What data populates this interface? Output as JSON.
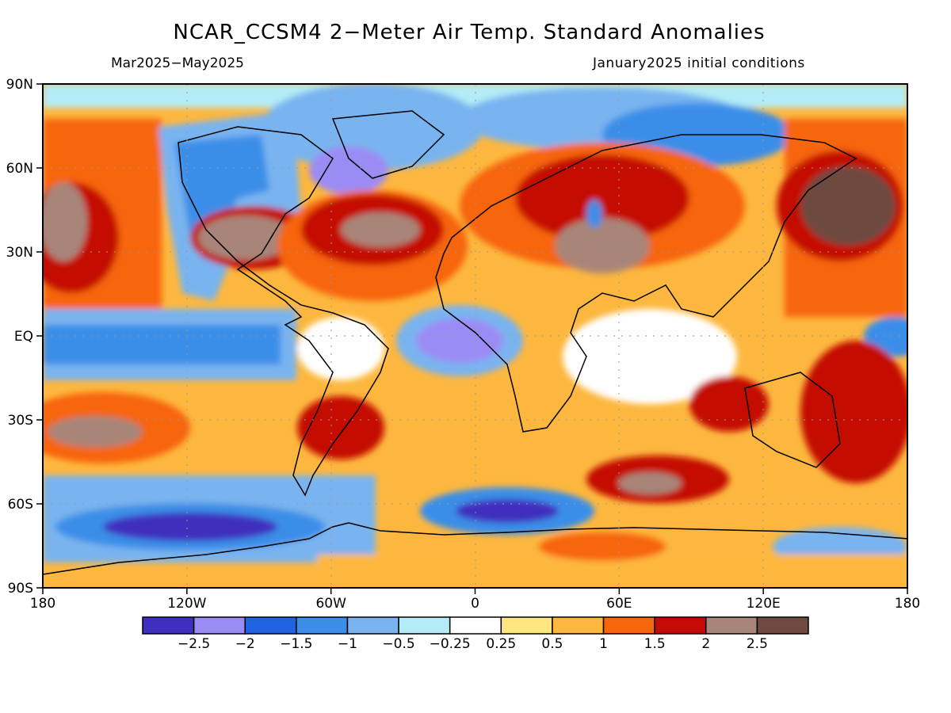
{
  "title": "NCAR_CCSM4 2−Meter Air Temp. Standard Anomalies",
  "subtitle_left": "Mar2025−May2025",
  "subtitle_right": "January2025 initial conditions",
  "lat_labels": [
    "90N",
    "60N",
    "30N",
    "EQ",
    "30S",
    "60S",
    "90S"
  ],
  "lon_labels": [
    "180",
    "120W",
    "60W",
    "0",
    "60E",
    "120E",
    "180"
  ],
  "colorbar": {
    "colors": [
      "#3f2fbf",
      "#9b8bf5",
      "#1f63e0",
      "#3b8ee8",
      "#79b4f0",
      "#b3ecf7",
      "#ffffff",
      "#ffe680",
      "#fdb73e",
      "#f7650d",
      "#c40a05",
      "#a88578",
      "#6e4a40"
    ],
    "labels": [
      "−2.5",
      "−2",
      "−1.5",
      "−1",
      "−0.5",
      "−0.25",
      "0.25",
      "0.5",
      "1",
      "1.5",
      "2",
      "2.5"
    ]
  },
  "map_regions": [
    {
      "name": "north-pacific-warm",
      "color": "#f7650d"
    },
    {
      "name": "northeast-pacific-cool",
      "color": "#79b4f0"
    },
    {
      "name": "equatorial-pacific-cool",
      "color": "#3b8ee8"
    },
    {
      "name": "usa-brown",
      "color": "#a88578"
    },
    {
      "name": "north-atlantic-warm",
      "color": "#c40a05"
    },
    {
      "name": "labrador-cool",
      "color": "#9b8bf5"
    },
    {
      "name": "gulf-of-guinea-cool",
      "color": "#9b8bf5"
    },
    {
      "name": "eurasia-warm",
      "color": "#f7650d"
    },
    {
      "name": "siberia-cool",
      "color": "#79b4f0"
    },
    {
      "name": "east-asia-brown",
      "color": "#6e4a40"
    },
    {
      "name": "southern-ocean-cool",
      "color": "#3f2fbf"
    },
    {
      "name": "antarctica-warm",
      "color": "#fdb73e"
    }
  ]
}
